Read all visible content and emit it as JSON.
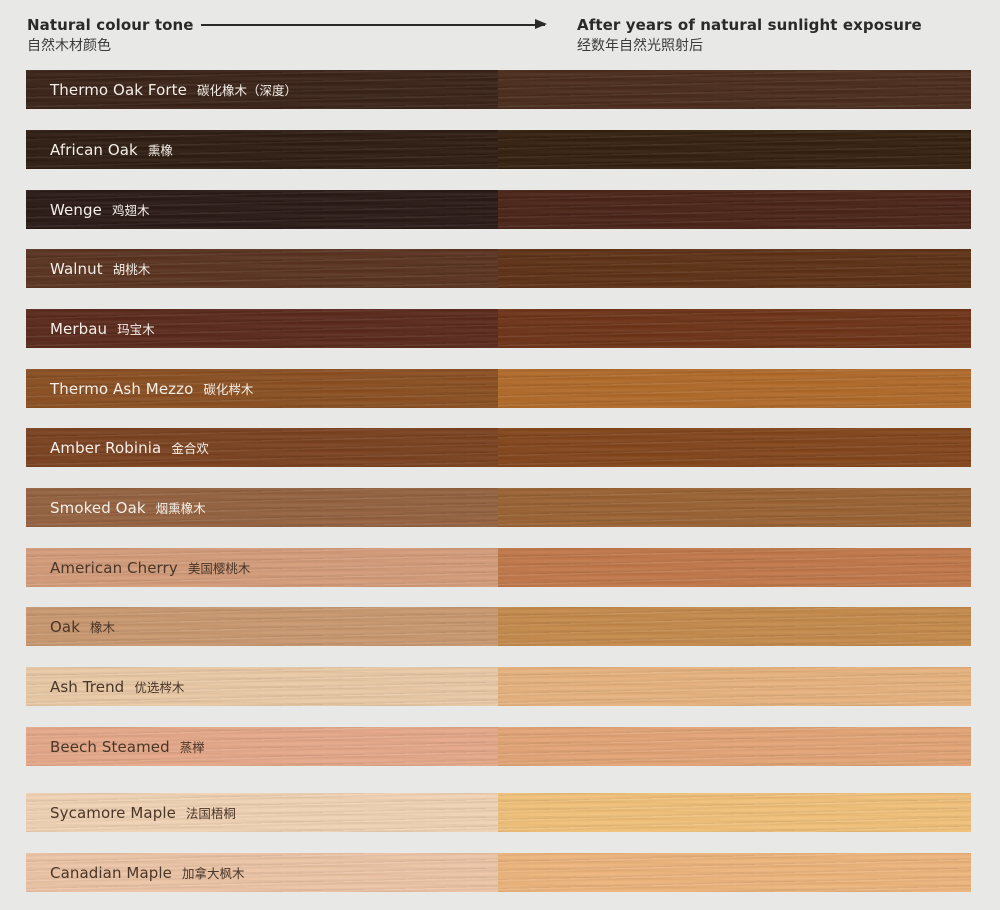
{
  "header": {
    "left_title": "Natural colour tone",
    "left_sub": "自然木材颜色",
    "right_title": "After years of natural sunlight exposure",
    "right_sub": "经数年自然光照射后"
  },
  "woods": [
    {
      "en": "Thermo Oak Forte",
      "zh": "碳化橡木（深度）",
      "before": "#3a2318",
      "after": "#4a2c1c",
      "light_label": true
    },
    {
      "en": "African Oak",
      "zh": "熏橡",
      "before": "#2e1d12",
      "after": "#34200f",
      "light_label": true
    },
    {
      "en": "Wenge",
      "zh": "鸡翅木",
      "before": "#2a1a16",
      "after": "#4a2418",
      "light_label": true
    },
    {
      "en": "Walnut",
      "zh": "胡桃木",
      "before": "#5a3320",
      "after": "#5e3216",
      "light_label": true
    },
    {
      "en": "Merbau",
      "zh": "玛宝木",
      "before": "#5a2a1c",
      "after": "#6e3418",
      "light_label": true
    },
    {
      "en": "Thermo Ash Mezzo",
      "zh": "碳化梣木",
      "before": "#8a4f22",
      "after": "#b06a2a",
      "light_label": true
    },
    {
      "en": "Amber Robinia",
      "zh": "金合欢",
      "before": "#7a4220",
      "after": "#83461c",
      "light_label": true
    },
    {
      "en": "Smoked Oak",
      "zh": "烟熏橡木",
      "before": "#946240",
      "after": "#9a6234",
      "light_label": true
    },
    {
      "en": "American Cherry",
      "zh": "美国樱桃木",
      "before": "#d39c7a",
      "after": "#c0784a",
      "light_label": false
    },
    {
      "en": "Oak",
      "zh": "橡木",
      "before": "#c99870",
      "after": "#c48a4c",
      "light_label": false
    },
    {
      "en": "Ash Trend",
      "zh": "优选梣木",
      "before": "#e9c9a6",
      "after": "#e6b27e",
      "light_label": false
    },
    {
      "en": "Beech Steamed",
      "zh": "蒸榉",
      "before": "#e5a889",
      "after": "#e2a476",
      "light_label": false
    },
    {
      "en": "Sycamore Maple",
      "zh": "法国梧桐",
      "before": "#f0d2b4",
      "after": "#f0c07a",
      "light_label": false
    },
    {
      "en": "Canadian Maple",
      "zh": "加拿大枫木",
      "before": "#ecc4a6",
      "after": "#ecb47c",
      "light_label": false
    }
  ]
}
